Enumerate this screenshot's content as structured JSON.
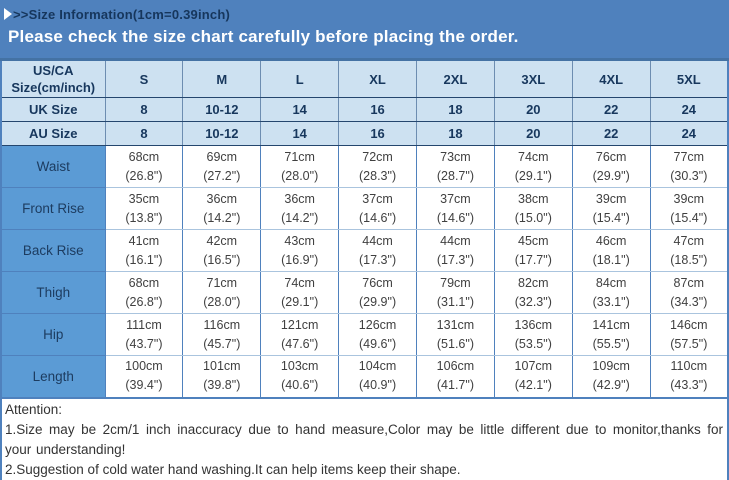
{
  "header": {
    "title": ">>Size Information(1cm=0.39inch)",
    "banner": "Please check the size chart carefully before placing the order."
  },
  "size_chart": {
    "corner": {
      "line1": "US/CA",
      "line2": "Size(cm/inch)"
    },
    "sizes": [
      "S",
      "M",
      "L",
      "XL",
      "2XL",
      "3XL",
      "4XL",
      "5XL"
    ],
    "conversion_rows": [
      {
        "label": "UK Size",
        "values": [
          "8",
          "10-12",
          "14",
          "16",
          "18",
          "20",
          "22",
          "24"
        ]
      },
      {
        "label": "AU Size",
        "values": [
          "8",
          "10-12",
          "14",
          "16",
          "18",
          "20",
          "22",
          "24"
        ]
      }
    ],
    "measurement_rows": [
      {
        "label": "Waist",
        "cm": [
          "68cm",
          "69cm",
          "71cm",
          "72cm",
          "73cm",
          "74cm",
          "76cm",
          "77cm"
        ],
        "inch": [
          "(26.8\")",
          "(27.2\")",
          "(28.0\")",
          "(28.3\")",
          "(28.7\")",
          "(29.1\")",
          "(29.9\")",
          "(30.3\")"
        ]
      },
      {
        "label": "Front Rise",
        "cm": [
          "35cm",
          "36cm",
          "36cm",
          "37cm",
          "37cm",
          "38cm",
          "39cm",
          "39cm"
        ],
        "inch": [
          "(13.8\")",
          "(14.2\")",
          "(14.2\")",
          "(14.6\")",
          "(14.6\")",
          "(15.0\")",
          "(15.4\")",
          "(15.4\")"
        ]
      },
      {
        "label": "Back Rise",
        "cm": [
          "41cm",
          "42cm",
          "43cm",
          "44cm",
          "44cm",
          "45cm",
          "46cm",
          "47cm"
        ],
        "inch": [
          "(16.1\")",
          "(16.5\")",
          "(16.9\")",
          "(17.3\")",
          "(17.3\")",
          "(17.7\")",
          "(18.1\")",
          "(18.5\")"
        ]
      },
      {
        "label": "Thigh",
        "cm": [
          "68cm",
          "71cm",
          "74cm",
          "76cm",
          "79cm",
          "82cm",
          "84cm",
          "87cm"
        ],
        "inch": [
          "(26.8\")",
          "(28.0\")",
          "(29.1\")",
          "(29.9\")",
          "(31.1\")",
          "(32.3\")",
          "(33.1\")",
          "(34.3\")"
        ]
      },
      {
        "label": "Hip",
        "cm": [
          "111cm",
          "116cm",
          "121cm",
          "126cm",
          "131cm",
          "136cm",
          "141cm",
          "146cm"
        ],
        "inch": [
          "(43.7\")",
          "(45.7\")",
          "(47.6\")",
          "(49.6\")",
          "(51.6\")",
          "(53.5\")",
          "(55.5\")",
          "(57.5\")"
        ]
      },
      {
        "label": "Length",
        "cm": [
          "100cm",
          "101cm",
          "103cm",
          "104cm",
          "106cm",
          "107cm",
          "109cm",
          "110cm"
        ],
        "inch": [
          "(39.4\")",
          "(39.8\")",
          "(40.6\")",
          "(40.9\")",
          "(41.7\")",
          "(42.1\")",
          "(42.9\")",
          "(43.3\")"
        ]
      }
    ]
  },
  "attention": {
    "title": "Attention:",
    "notes": [
      "1.Size may be 2cm/1 inch inaccuracy due to hand measure,Color may be little different due to monitor,thanks for your understanding!",
      "2.Suggestion of cold water hand washing.It can help items keep their shape."
    ]
  },
  "colors": {
    "band_blue": "#4f81bd",
    "label_cell_blue": "#5b9bd5",
    "header_light_blue": "#cde1f1",
    "navy_text": "#17375d",
    "value_text": "#404040"
  }
}
